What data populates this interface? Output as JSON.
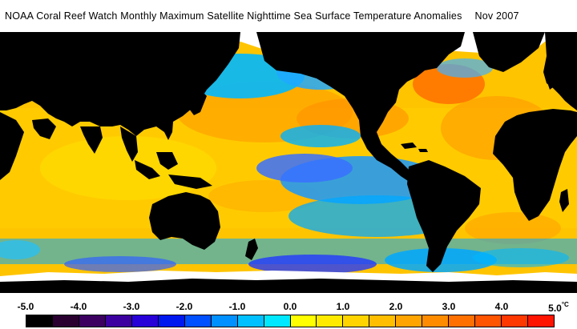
{
  "title": {
    "text": "NOAA Coral Reef Watch Monthly Maximum Satellite Nighttime Sea Surface Temperature Anomalies",
    "date": "Nov 2007"
  },
  "legend": {
    "ticks": [
      "-5.0",
      "-4.0",
      "-3.0",
      "-2.0",
      "-1.0",
      "0.0",
      "1.0",
      "2.0",
      "3.0",
      "4.0",
      "5.0"
    ],
    "unit": "°C",
    "swatches": [
      "#000000",
      "#2a0030",
      "#3c0060",
      "#3c00a0",
      "#2800d8",
      "#0018f0",
      "#0050ff",
      "#0090ff",
      "#00c0ff",
      "#00e8ff",
      "#ffff00",
      "#ffea00",
      "#ffd400",
      "#ffbe00",
      "#ffa400",
      "#ff8c00",
      "#ff7000",
      "#ff5400",
      "#ff3800",
      "#ff1400"
    ]
  },
  "map": {
    "land_color": "#000000",
    "ice_color": "#ffffff"
  }
}
